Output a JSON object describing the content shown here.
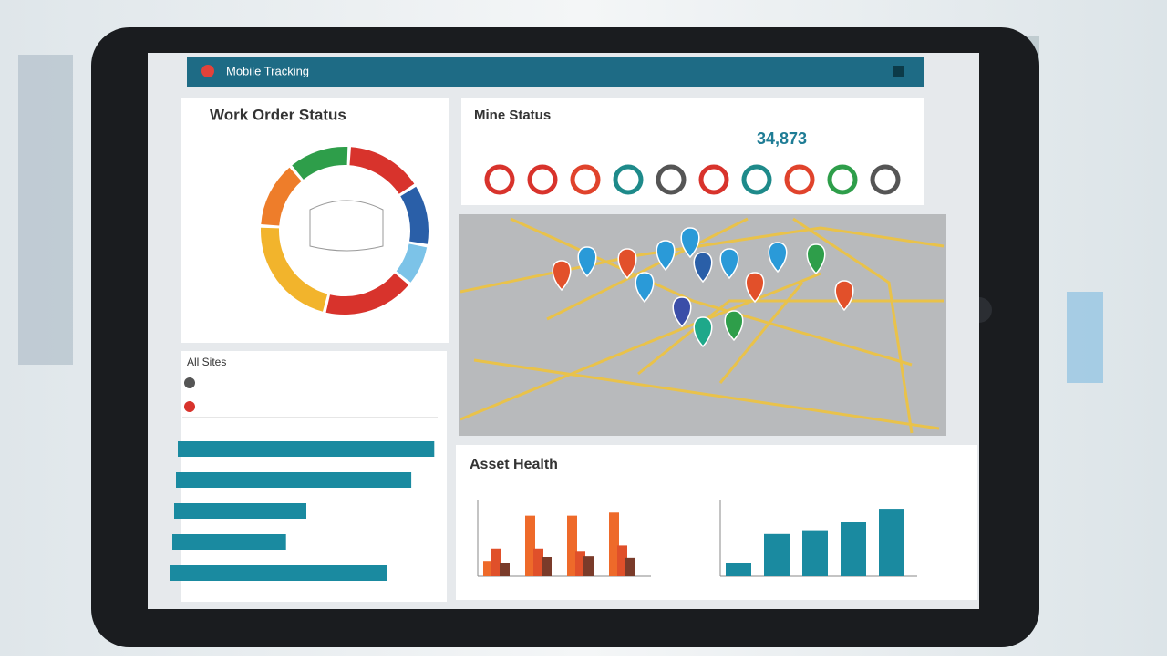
{
  "header": {
    "title": "Mobile Tracking"
  },
  "status_panel": {
    "title": "Mine Status",
    "total": "34,873"
  },
  "list_panel": {
    "title": "All Sites"
  },
  "chart_data": [
    {
      "type": "pie",
      "title": "Work Order Status",
      "values": [
        12,
        15,
        12,
        8,
        18,
        22,
        13
      ],
      "colors": [
        "#2e9e4a",
        "#d8332c",
        "#2a5fa8",
        "#7cc3e8",
        "#d8332c",
        "#f2b42c",
        "#ee7d2a"
      ]
    },
    {
      "type": "hbar",
      "categories": [
        null,
        null,
        null,
        null,
        null
      ],
      "values": [
        97,
        89,
        50,
        43,
        82
      ],
      "xlim": [
        0,
        100
      ],
      "color": "#1a8aa0"
    },
    {
      "type": "column",
      "title": "Asset Health",
      "categories": [
        null,
        null,
        null,
        null
      ],
      "ylim": [
        0,
        100
      ],
      "series": [
        {
          "color": "#ee6a2a",
          "values": [
            20,
            79,
            79,
            83
          ]
        },
        {
          "color": "#e0502a",
          "values": [
            36,
            36,
            33,
            40
          ]
        },
        {
          "color": "#7a3b2a",
          "values": [
            17,
            25,
            26,
            24
          ]
        }
      ]
    },
    {
      "type": "column",
      "categories": [
        null,
        null,
        null,
        null,
        null
      ],
      "ylim": [
        0,
        100
      ],
      "color": "#1a8aa0",
      "series": [
        {
          "color": "#1a8aa0",
          "values": [
            17,
            55,
            60,
            71,
            88
          ]
        }
      ]
    }
  ]
}
